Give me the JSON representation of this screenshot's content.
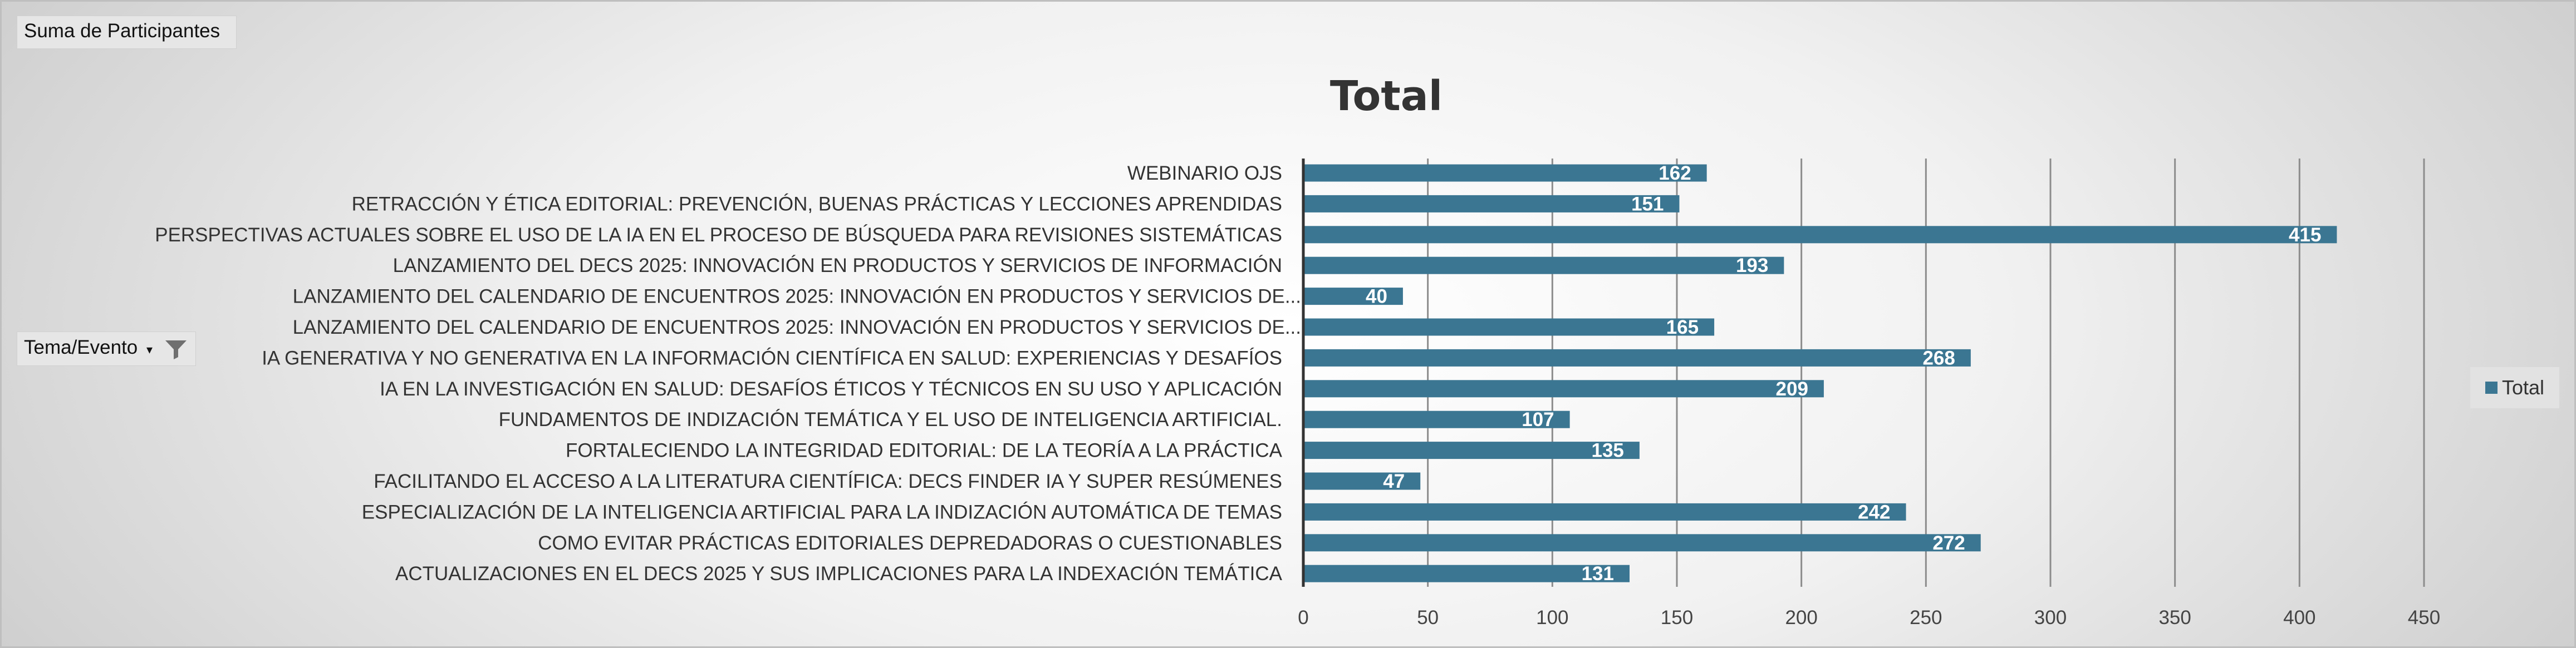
{
  "pivot": {
    "value_field": "Suma de Participantes",
    "row_field": "Tema/Evento",
    "row_field_caret": "▾"
  },
  "legend": {
    "label": "Total"
  },
  "chart_data": {
    "type": "bar",
    "orientation": "horizontal",
    "title": "Total",
    "categories": [
      "WEBINARIO OJS",
      "RETRACCIÓN Y ÉTICA EDITORIAL: PREVENCIÓN, BUENAS PRÁCTICAS Y LECCIONES APRENDIDAS",
      "PERSPECTIVAS ACTUALES SOBRE EL USO DE LA IA EN EL PROCESO DE BÚSQUEDA PARA REVISIONES SISTEMÁTICAS",
      "LANZAMIENTO DEL DECS 2025: INNOVACIÓN EN PRODUCTOS Y SERVICIOS DE INFORMACIÓN",
      "LANZAMIENTO DEL CALENDARIO DE ENCUENTROS 2025: INNOVACIÓN EN PRODUCTOS Y SERVICIOS DE...",
      "LANZAMIENTO DEL CALENDARIO DE ENCUENTROS 2025: INNOVACIÓN EN PRODUCTOS Y SERVICIOS DE...",
      "IA GENERATIVA Y NO GENERATIVA EN LA INFORMACIÓN CIENTÍFICA EN SALUD: EXPERIENCIAS Y DESAFÍOS",
      "IA EN LA INVESTIGACIÓN EN SALUD: DESAFÍOS ÉTICOS Y TÉCNICOS EN SU USO Y APLICACIÓN",
      "FUNDAMENTOS DE INDIZACIÓN TEMÁTICA Y EL USO DE INTELIGENCIA ARTIFICIAL.",
      "FORTALECIENDO LA INTEGRIDAD EDITORIAL: DE LA TEORÍA A LA PRÁCTICA",
      "FACILITANDO EL ACCESO A LA LITERATURA CIENTÍFICA: DECS FINDER IA Y SUPER RESÚMENES",
      "ESPECIALIZACIÓN DE LA INTELIGENCIA ARTIFICIAL PARA LA INDIZACIÓN AUTOMÁTICA DE TEMAS",
      "COMO EVITAR PRÁCTICAS EDITORIALES DEPREDADORAS O CUESTIONABLES",
      "ACTUALIZACIONES EN EL DECS 2025 Y SUS IMPLICACIONES PARA LA INDEXACIÓN TEMÁTICA"
    ],
    "series": [
      {
        "name": "Total",
        "values": [
          162,
          151,
          415,
          193,
          40,
          165,
          268,
          209,
          107,
          135,
          47,
          242,
          272,
          131
        ]
      }
    ],
    "xlim": [
      0,
      450
    ],
    "xticks": [
      0,
      50,
      100,
      150,
      200,
      250,
      300,
      350,
      400,
      450
    ],
    "grid": true,
    "legend_position": "right",
    "bar_color": "#3b7692"
  }
}
